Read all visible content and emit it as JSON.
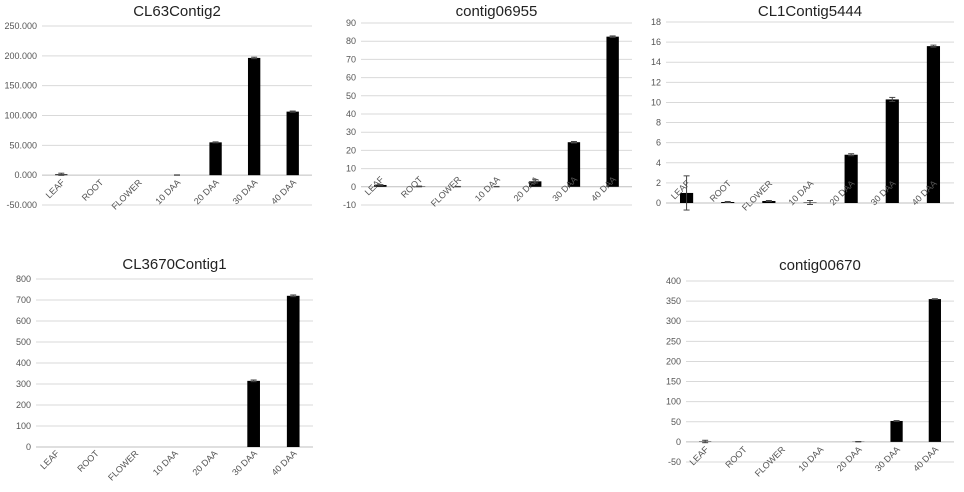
{
  "chart_data": [
    {
      "type": "bar",
      "title": "CL63Contig2",
      "categories": [
        "LEAF",
        "ROOT",
        "FLOWER",
        "10 DAA",
        "20 DAA",
        "30 DAA",
        "40 DAA"
      ],
      "values": [
        1500,
        0,
        0,
        200,
        55000,
        196500,
        106500
      ],
      "errors": [
        1800,
        0,
        0,
        300,
        800,
        1200,
        1000
      ],
      "yticks": [
        "-50.000",
        "0.000",
        "50.000",
        "100.000",
        "150.000",
        "200.000",
        "250.000"
      ],
      "ylim": [
        -50000,
        250000
      ],
      "ytick_step": 50000
    },
    {
      "type": "bar",
      "title": "contig06955",
      "categories": [
        "LEAF",
        "ROOT",
        "FLOWER",
        "10 DAA",
        "20 DAA",
        "30 DAA",
        "40 DAA"
      ],
      "values": [
        1,
        0.2,
        0.1,
        0.1,
        3,
        24.5,
        82.5
      ],
      "errors": [
        0.2,
        0.2,
        0.1,
        0.1,
        0.9,
        0.4,
        0.4
      ],
      "yticks": [
        "-10",
        "0",
        "10",
        "20",
        "30",
        "40",
        "50",
        "60",
        "70",
        "80",
        "90"
      ],
      "ylim": [
        -10,
        90
      ],
      "ytick_step": 10
    },
    {
      "type": "bar",
      "title": "CL1Contig5444",
      "categories": [
        "LEAF",
        "ROOT",
        "FLOWER",
        "10 DAA",
        "20 DAA",
        "30 DAA",
        "40 DAA"
      ],
      "values": [
        1,
        0.1,
        0.2,
        0.05,
        4.8,
        10.3,
        15.6
      ],
      "errors": [
        1.7,
        0.05,
        0.05,
        0.2,
        0.1,
        0.2,
        0.1
      ],
      "yticks": [
        "0",
        "2",
        "4",
        "6",
        "8",
        "10",
        "12",
        "14",
        "16",
        "18"
      ],
      "ylim": [
        0,
        18
      ],
      "ytick_step": 2
    },
    {
      "type": "bar",
      "title": "CL3670Contig1",
      "categories": [
        "LEAF",
        "ROOT",
        "FLOWER",
        "10 DAA",
        "20 DAA",
        "30 DAA",
        "40 DAA"
      ],
      "values": [
        0,
        0,
        0,
        0,
        0,
        315,
        720
      ],
      "errors": [
        0,
        0,
        0,
        0,
        0,
        4,
        4
      ],
      "yticks": [
        "0",
        "100",
        "200",
        "300",
        "400",
        "500",
        "600",
        "700",
        "800"
      ],
      "ylim": [
        0,
        800
      ],
      "ytick_step": 100
    },
    {
      "type": "bar",
      "title": "contig00670",
      "categories": [
        "LEAF",
        "ROOT",
        "FLOWER",
        "10 DAA",
        "20 DAA",
        "30 DAA",
        "40 DAA"
      ],
      "values": [
        1,
        0,
        0,
        0,
        0.5,
        52,
        355
      ],
      "errors": [
        3,
        0,
        0,
        0,
        0.5,
        1,
        1
      ],
      "yticks": [
        "-50",
        "0",
        "50",
        "100",
        "150",
        "200",
        "250",
        "300",
        "350",
        "400"
      ],
      "ylim": [
        -50,
        400
      ],
      "ytick_step": 50
    }
  ]
}
